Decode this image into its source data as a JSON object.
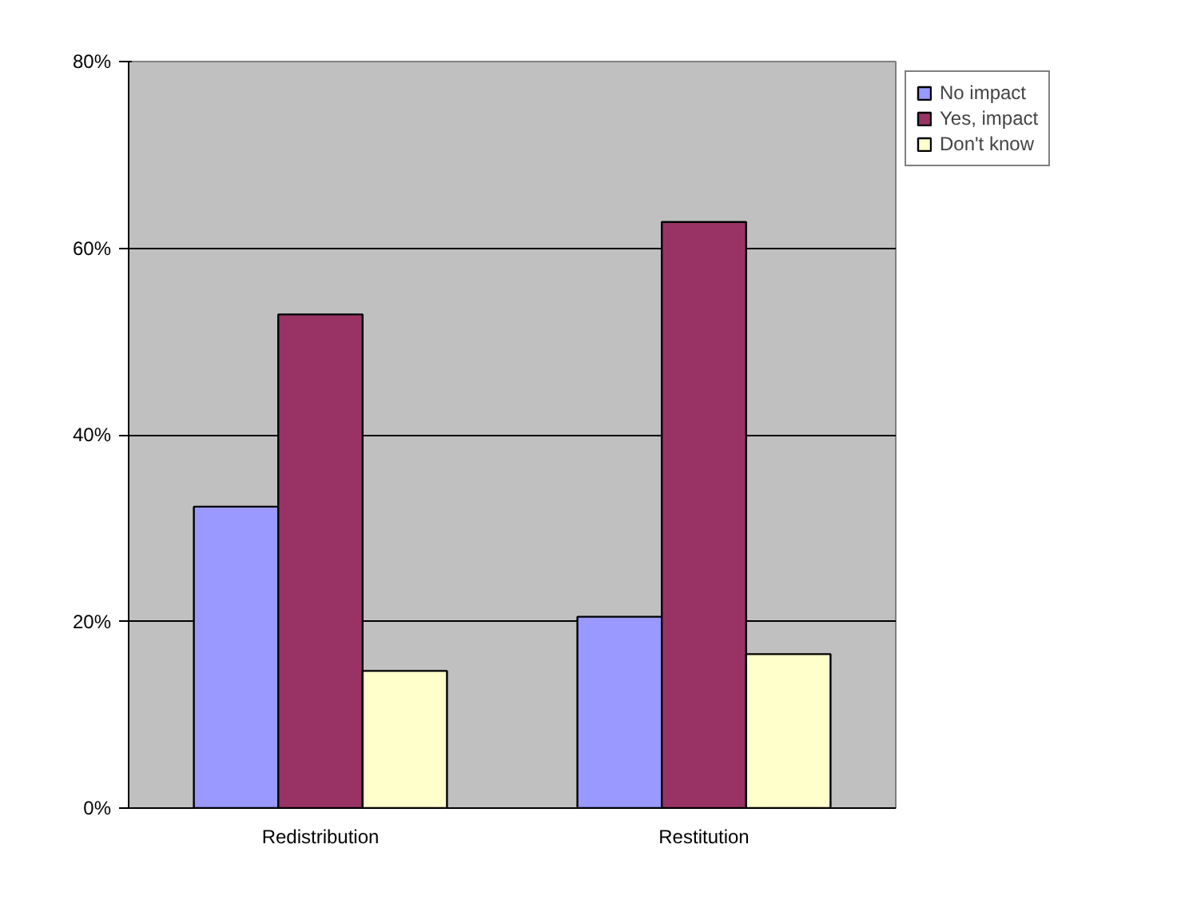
{
  "chart_data": {
    "type": "bar",
    "categories": [
      "Redistribution",
      "Restitution"
    ],
    "series": [
      {
        "name": "No impact",
        "color": "#9999ff",
        "values": [
          0.323,
          0.205
        ]
      },
      {
        "name": "Yes, impact",
        "color": "#993366",
        "values": [
          0.529,
          0.628
        ]
      },
      {
        "name": "Don't know",
        "color": "#ffffcc",
        "values": [
          0.147,
          0.165
        ]
      }
    ],
    "ylim": [
      0,
      0.8
    ],
    "yticks": [
      {
        "value": 0,
        "label": "0%"
      },
      {
        "value": 0.2,
        "label": "20%"
      },
      {
        "value": 0.4,
        "label": "40%"
      },
      {
        "value": 0.6,
        "label": "60%"
      },
      {
        "value": 0.8,
        "label": "80%"
      }
    ],
    "grid": "y",
    "legend": "right"
  }
}
